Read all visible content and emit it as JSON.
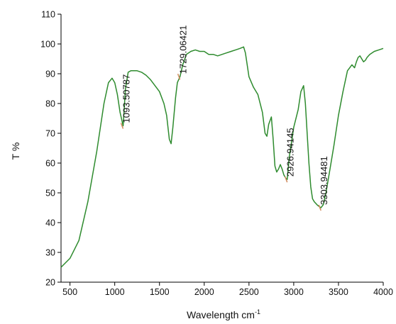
{
  "chart_data": {
    "type": "line",
    "title": "",
    "xlabel": "Wavelength cm",
    "xlabel_superscript": "-1",
    "ylabel": "T %",
    "xlim": [
      400,
      4000
    ],
    "ylim": [
      20,
      110
    ],
    "x_ticks": [
      500,
      1000,
      1500,
      2000,
      2500,
      3000,
      3500,
      4000
    ],
    "y_ticks": [
      20,
      30,
      40,
      50,
      60,
      70,
      80,
      90,
      100,
      110
    ],
    "grid": false,
    "legend": "none",
    "line_color": "#2e8b2e",
    "marker_color": "#d08a5c",
    "series": [
      {
        "x": [
          400,
          500,
          600,
          700,
          800,
          880,
          930,
          970,
          1000,
          1030,
          1060,
          1093.5,
          1120,
          1150,
          1180,
          1200,
          1250,
          1300,
          1350,
          1400,
          1450,
          1500,
          1550,
          1580,
          1610,
          1630,
          1650,
          1680,
          1700,
          1729,
          1760,
          1800,
          1850,
          1900,
          1950,
          2000,
          2050,
          2100,
          2150,
          2200,
          2250,
          2300,
          2350,
          2400,
          2440,
          2460,
          2480,
          2500,
          2550,
          2600,
          2650,
          2680,
          2700,
          2720,
          2750,
          2770,
          2790,
          2810,
          2830,
          2850,
          2870,
          2890,
          2910,
          2927,
          2950,
          3000,
          3050,
          3080,
          3110,
          3130,
          3150,
          3170,
          3190,
          3210,
          3230,
          3260,
          3280,
          3304,
          3330,
          3360,
          3400,
          3450,
          3500,
          3550,
          3600,
          3650,
          3680,
          3700,
          3720,
          3740,
          3760,
          3780,
          3800,
          3820,
          3850,
          3900,
          3950,
          4000
        ],
        "y": [
          25,
          28,
          34,
          47,
          64,
          80,
          87,
          88.5,
          87,
          83,
          77,
          72.5,
          85,
          90.5,
          91,
          91,
          91,
          90.5,
          89.5,
          88,
          86,
          84,
          80,
          76,
          68,
          66.5,
          72,
          82,
          87,
          89,
          93,
          96.5,
          97.5,
          98,
          97.5,
          97.5,
          96.5,
          96.5,
          96,
          96.5,
          97,
          97.5,
          98,
          98.5,
          99,
          97,
          93,
          89,
          85.5,
          83,
          77,
          70,
          69,
          73,
          75.5,
          68,
          59,
          57,
          58,
          59.5,
          58,
          56,
          55,
          54.5,
          62,
          72,
          78,
          84,
          86,
          80,
          70,
          60,
          52,
          48,
          47,
          46,
          45.5,
          45,
          46,
          50,
          57,
          66,
          76,
          84,
          91,
          93,
          92,
          94,
          95.5,
          96,
          95,
          94,
          94.5,
          95.5,
          96.5,
          97.5,
          98,
          98.5
        ]
      }
    ],
    "annotations": [
      {
        "text": "1093.50787",
        "x": 1093.5,
        "y": 72.5
      },
      {
        "text": "1729.06421",
        "x": 1729,
        "y": 89
      },
      {
        "text": "2926.94145",
        "x": 2927,
        "y": 54.5
      },
      {
        "text": "3303.94481",
        "x": 3304,
        "y": 45
      }
    ]
  }
}
